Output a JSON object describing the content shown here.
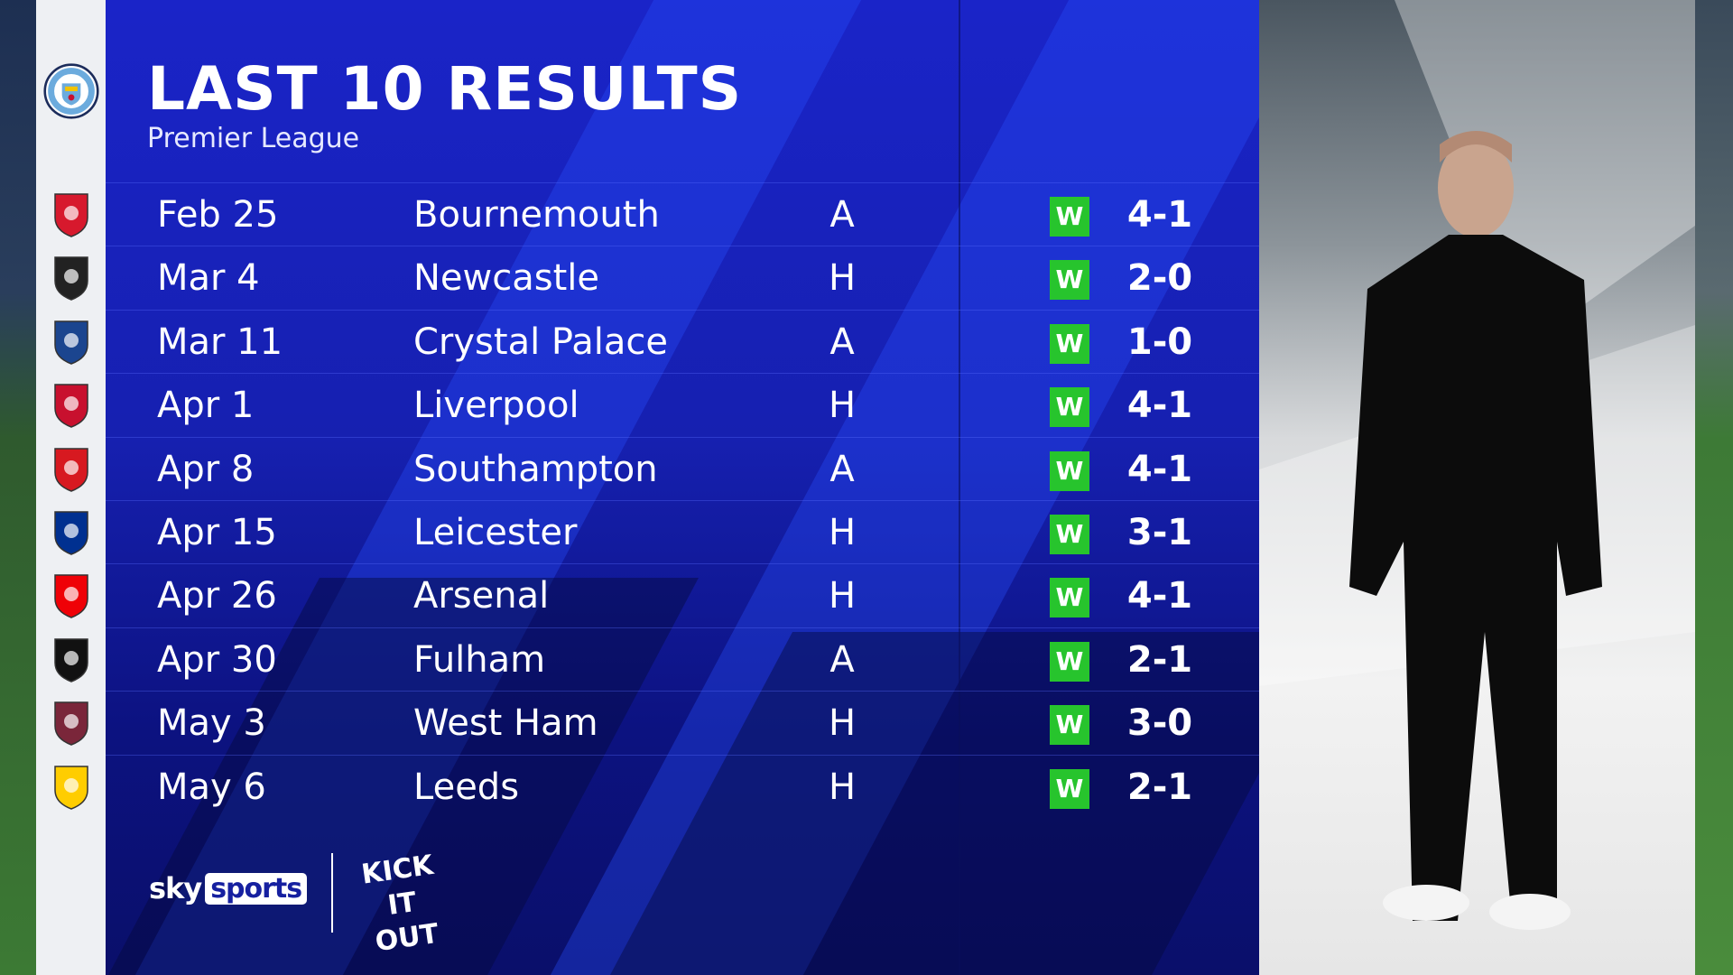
{
  "header": {
    "title": "LAST 10 RESULTS",
    "subtitle": "Premier League"
  },
  "team_crest": "manchester-city-crest",
  "results": [
    {
      "date": "Feb 25",
      "opponent": "Bournemouth",
      "venue": "A",
      "result": "W",
      "score": "4-1",
      "crest": "bournemouth-crest",
      "color": "#d7192d"
    },
    {
      "date": "Mar 4",
      "opponent": "Newcastle",
      "venue": "H",
      "result": "W",
      "score": "2-0",
      "crest": "newcastle-crest",
      "color": "#222222"
    },
    {
      "date": "Mar 11",
      "opponent": "Crystal Palace",
      "venue": "A",
      "result": "W",
      "score": "1-0",
      "crest": "crystal-palace-crest",
      "color": "#1b458f"
    },
    {
      "date": "Apr 1",
      "opponent": "Liverpool",
      "venue": "H",
      "result": "W",
      "score": "4-1",
      "crest": "liverpool-crest",
      "color": "#c8102e"
    },
    {
      "date": "Apr 8",
      "opponent": "Southampton",
      "venue": "A",
      "result": "W",
      "score": "4-1",
      "crest": "southampton-crest",
      "color": "#d71920"
    },
    {
      "date": "Apr 15",
      "opponent": "Leicester",
      "venue": "H",
      "result": "W",
      "score": "3-1",
      "crest": "leicester-crest",
      "color": "#003090"
    },
    {
      "date": "Apr 26",
      "opponent": "Arsenal",
      "venue": "H",
      "result": "W",
      "score": "4-1",
      "crest": "arsenal-crest",
      "color": "#ef0107"
    },
    {
      "date": "Apr 30",
      "opponent": "Fulham",
      "venue": "A",
      "result": "W",
      "score": "2-1",
      "crest": "fulham-crest",
      "color": "#111111"
    },
    {
      "date": "May 3",
      "opponent": "West Ham",
      "venue": "H",
      "result": "W",
      "score": "3-0",
      "crest": "west-ham-crest",
      "color": "#7a263a"
    },
    {
      "date": "May 6",
      "opponent": "Leeds",
      "venue": "H",
      "result": "W",
      "score": "2-1",
      "crest": "leeds-crest",
      "color": "#ffcd00"
    }
  ],
  "colors": {
    "win": "#27c42d",
    "panel": "#1620b0",
    "man_city": "#6cabdd"
  },
  "branding": {
    "sky": "sky",
    "sports": "sports",
    "kick_it_out": "KICK IT OUT"
  }
}
